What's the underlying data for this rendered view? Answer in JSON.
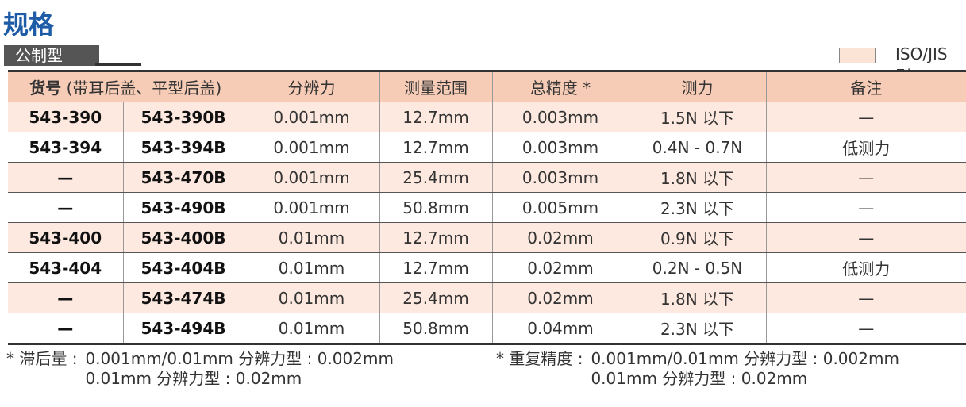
{
  "header": {
    "title": "规格",
    "subtitle": "公制型",
    "legend": "ISO/JIS 型"
  },
  "table": {
    "part_header": {
      "bold": "货号",
      "note": "(带耳后盖、平型后盖)"
    },
    "columns": [
      "分辨力",
      "测量范围",
      "总精度 *",
      "测力",
      "备注"
    ],
    "rows": [
      [
        "543-390",
        "543-390B",
        "0.001mm",
        "12.7mm",
        "0.003mm",
        "1.5N 以下",
        "—"
      ],
      [
        "543-394",
        "543-394B",
        "0.001mm",
        "12.7mm",
        "0.003mm",
        "0.4N - 0.7N",
        "低测力"
      ],
      [
        "—",
        "543-470B",
        "0.001mm",
        "25.4mm",
        "0.003mm",
        "1.8N 以下",
        "—"
      ],
      [
        "—",
        "543-490B",
        "0.001mm",
        "50.8mm",
        "0.005mm",
        "2.3N 以下",
        "—"
      ],
      [
        "543-400",
        "543-400B",
        "0.01mm",
        "12.7mm",
        "0.02mm",
        "0.9N 以下",
        "—"
      ],
      [
        "543-404",
        "543-404B",
        "0.01mm",
        "12.7mm",
        "0.02mm",
        "0.2N - 0.5N",
        "低测力"
      ],
      [
        "—",
        "543-474B",
        "0.01mm",
        "25.4mm",
        "0.02mm",
        "1.8N 以下",
        "—"
      ],
      [
        "—",
        "543-494B",
        "0.01mm",
        "50.8mm",
        "0.04mm",
        "2.3N 以下",
        "—"
      ]
    ]
  },
  "footnotes": [
    {
      "label": "* 滞后量 :",
      "lines": [
        "0.001mm/0.01mm 分辨力型 : 0.002mm",
        "0.01mm 分辨力型 : 0.02mm"
      ]
    },
    {
      "label": "* 重复精度 :",
      "lines": [
        "0.001mm/0.01mm 分辨力型 : 0.002mm",
        "0.01mm 分辨力型 : 0.02mm"
      ]
    }
  ]
}
